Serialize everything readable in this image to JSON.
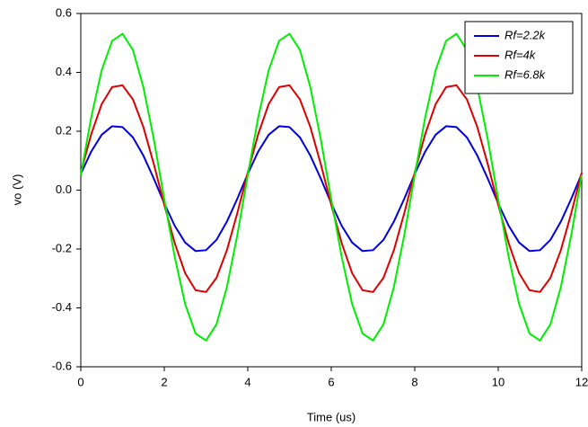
{
  "chart_data": {
    "type": "line",
    "x_label": "Time (us)",
    "y_label": "vo (V)",
    "x": [
      0,
      0.25,
      0.5,
      0.75,
      1,
      1.25,
      1.5,
      1.75,
      2,
      2.25,
      2.5,
      2.75,
      3,
      3.25,
      3.5,
      3.75,
      4,
      4.25,
      4.5,
      4.75,
      5,
      5.25,
      5.5,
      5.75,
      6,
      6.25,
      6.5,
      6.75,
      7,
      7.25,
      7.5,
      7.75,
      8,
      8.25,
      8.5,
      8.75,
      9,
      9.25,
      9.5,
      9.75,
      10,
      10.25,
      10.5,
      10.75,
      11,
      11.25,
      11.5,
      11.75,
      12
    ],
    "series": [
      {
        "name": "Rf=2.2k",
        "color": "#0000dd",
        "values": [
          0.055,
          0.131,
          0.188,
          0.217,
          0.214,
          0.179,
          0.117,
          0.039,
          -0.045,
          -0.121,
          -0.178,
          -0.207,
          -0.204,
          -0.169,
          -0.107,
          -0.029,
          0.055,
          0.131,
          0.188,
          0.217,
          0.214,
          0.179,
          0.117,
          0.039,
          -0.045,
          -0.121,
          -0.178,
          -0.207,
          -0.204,
          -0.169,
          -0.107,
          -0.029,
          0.055,
          0.131,
          0.188,
          0.217,
          0.214,
          0.179,
          0.117,
          0.039,
          -0.045,
          -0.121,
          -0.178,
          -0.207,
          -0.204,
          -0.169,
          -0.107,
          -0.029,
          0.055
        ]
      },
      {
        "name": "Rf=4k",
        "color": "#dd0000",
        "values": [
          0.06,
          0.19,
          0.292,
          0.35,
          0.356,
          0.308,
          0.214,
          0.088,
          -0.05,
          -0.18,
          -0.282,
          -0.34,
          -0.346,
          -0.298,
          -0.204,
          -0.078,
          0.06,
          0.19,
          0.292,
          0.35,
          0.356,
          0.308,
          0.214,
          0.088,
          -0.05,
          -0.18,
          -0.282,
          -0.34,
          -0.346,
          -0.298,
          -0.204,
          -0.078,
          0.06,
          0.19,
          0.292,
          0.35,
          0.356,
          0.308,
          0.214,
          0.088,
          -0.05,
          -0.18,
          -0.282,
          -0.34,
          -0.346,
          -0.298,
          -0.204,
          -0.078,
          0.06
        ]
      },
      {
        "name": "Rf=6.8k",
        "color": "#00ee00",
        "values": [
          0.051,
          0.247,
          0.407,
          0.507,
          0.531,
          0.476,
          0.349,
          0.172,
          -0.031,
          -0.227,
          -0.387,
          -0.487,
          -0.511,
          -0.456,
          -0.329,
          -0.152,
          0.051,
          0.247,
          0.407,
          0.507,
          0.531,
          0.476,
          0.349,
          0.172,
          -0.031,
          -0.227,
          -0.387,
          -0.487,
          -0.511,
          -0.456,
          -0.329,
          -0.152,
          0.051,
          0.247,
          0.407,
          0.507,
          0.531,
          0.476,
          0.349,
          0.172,
          -0.031,
          -0.227,
          -0.387,
          -0.487,
          -0.511,
          -0.456,
          -0.329,
          -0.152,
          0.051
        ]
      }
    ],
    "xlim": [
      0,
      12
    ],
    "xticks": [
      0,
      2,
      4,
      6,
      8,
      10,
      12
    ],
    "ylim": [
      -0.6,
      0.6
    ],
    "yticks": [
      -0.6,
      -0.4,
      -0.2,
      {
        "value": 0,
        "label": "0.0"
      },
      0.2,
      0.4,
      0.6
    ],
    "legend": "top-right",
    "grid": false
  }
}
